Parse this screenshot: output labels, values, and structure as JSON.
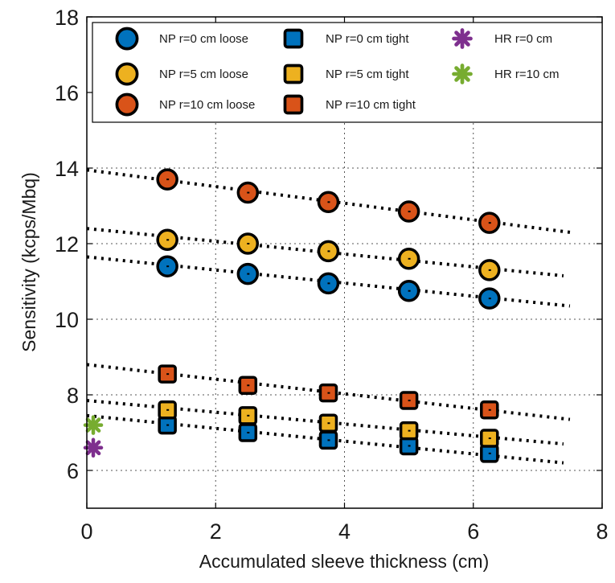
{
  "chart_data": {
    "type": "scatter",
    "title": "",
    "xlabel": "Accumulated sleeve thickness (cm)",
    "ylabel": "Sensitivity (kcps/Mbq)",
    "xlim": [
      0,
      8
    ],
    "ylim": [
      5,
      18
    ],
    "xticks": [
      0,
      2,
      4,
      6,
      8
    ],
    "yticks": [
      6,
      8,
      10,
      12,
      14,
      16,
      18
    ],
    "grid": true,
    "legend_position": "top",
    "colors": {
      "blue": "#0072BD",
      "yellow": "#EDB120",
      "orange": "#D95319",
      "purple": "#7E2F8E",
      "green": "#77AC30",
      "outline": "#000000"
    },
    "series": [
      {
        "name": "NP r=0 cm loose",
        "marker": "circle",
        "color": "#0072BD",
        "x": [
          1.25,
          2.5,
          3.75,
          5.0,
          6.25
        ],
        "y": [
          11.4,
          11.2,
          10.95,
          10.75,
          10.55
        ]
      },
      {
        "name": "NP r=5 cm loose",
        "marker": "circle",
        "color": "#EDB120",
        "x": [
          1.25,
          2.5,
          3.75,
          5.0,
          6.25
        ],
        "y": [
          12.1,
          12.0,
          11.8,
          11.6,
          11.3
        ]
      },
      {
        "name": "NP r=10 cm loose",
        "marker": "circle",
        "color": "#D95319",
        "x": [
          1.25,
          2.5,
          3.75,
          5.0,
          6.25
        ],
        "y": [
          13.7,
          13.35,
          13.1,
          12.85,
          12.55
        ]
      },
      {
        "name": "NP r=0 cm tight",
        "marker": "square",
        "color": "#0072BD",
        "x": [
          1.25,
          2.5,
          3.75,
          5.0,
          6.25
        ],
        "y": [
          7.2,
          7.0,
          6.8,
          6.65,
          6.45
        ]
      },
      {
        "name": "NP r=5 cm tight",
        "marker": "square",
        "color": "#EDB120",
        "x": [
          1.25,
          2.5,
          3.75,
          5.0,
          6.25
        ],
        "y": [
          7.6,
          7.45,
          7.25,
          7.05,
          6.85
        ]
      },
      {
        "name": "NP r=10 cm tight",
        "marker": "square",
        "color": "#D95319",
        "x": [
          1.25,
          2.5,
          3.75,
          5.0,
          6.25
        ],
        "y": [
          8.55,
          8.25,
          8.05,
          7.85,
          7.6
        ]
      },
      {
        "name": "HR r=0 cm",
        "marker": "asterisk",
        "color": "#7E2F8E",
        "x": [
          0.1
        ],
        "y": [
          6.6
        ]
      },
      {
        "name": "HR r=10 cm",
        "marker": "asterisk",
        "color": "#77AC30",
        "x": [
          0.1
        ],
        "y": [
          7.2
        ]
      }
    ],
    "fit_lines": [
      {
        "x": [
          0,
          7.5
        ],
        "y": [
          13.95,
          12.3
        ]
      },
      {
        "x": [
          0,
          7.4
        ],
        "y": [
          12.4,
          11.15
        ]
      },
      {
        "x": [
          0,
          7.5
        ],
        "y": [
          11.65,
          10.35
        ]
      },
      {
        "x": [
          0,
          7.5
        ],
        "y": [
          8.8,
          7.35
        ]
      },
      {
        "x": [
          0,
          7.4
        ],
        "y": [
          7.85,
          6.7
        ]
      },
      {
        "x": [
          0,
          7.4
        ],
        "y": [
          7.45,
          6.2
        ]
      }
    ]
  }
}
